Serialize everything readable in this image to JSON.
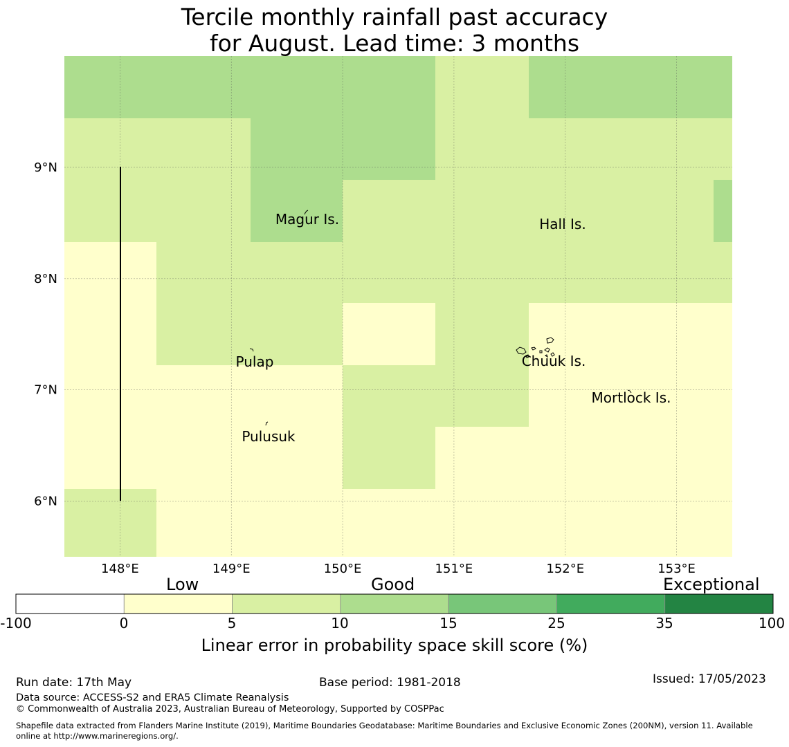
{
  "title": {
    "line1": "Tercile monthly rainfall past accuracy",
    "line2": "for August. Lead time: 3 months"
  },
  "map": {
    "lon_range": [
      147.5,
      153.5
    ],
    "lat_range": [
      5.5,
      10.0
    ],
    "lon_ticks": [
      "148°E",
      "149°E",
      "150°E",
      "151°E",
      "152°E",
      "153°E"
    ],
    "lat_ticks": [
      "6°N",
      "7°N",
      "8°N",
      "9°N"
    ],
    "gridlines": true,
    "places": [
      "Magur Is.",
      "Hall Is.",
      "Pulap",
      "Chuuk Is.",
      "Mortlock Is.",
      "Pulusuk"
    ],
    "grid_lon_edges": [
      147.5,
      148.33,
      149.17,
      150.0,
      150.83,
      151.67,
      152.5,
      153.33,
      153.5
    ],
    "grid_lat_edges": [
      10.0,
      9.44,
      8.89,
      8.33,
      7.78,
      7.22,
      6.67,
      6.11,
      5.5
    ],
    "skill_classes": [
      [
        2,
        2,
        2,
        2,
        1,
        2,
        2,
        2
      ],
      [
        1,
        1,
        2,
        2,
        1,
        1,
        1,
        1
      ],
      [
        1,
        1,
        2,
        1,
        1,
        1,
        1,
        2
      ],
      [
        0,
        1,
        1,
        1,
        1,
        1,
        1,
        1
      ],
      [
        0,
        1,
        1,
        0,
        1,
        0,
        0,
        0
      ],
      [
        0,
        0,
        0,
        1,
        1,
        0,
        0,
        0
      ],
      [
        0,
        0,
        0,
        1,
        0,
        0,
        0,
        0
      ],
      [
        1,
        0,
        0,
        0,
        0,
        0,
        0,
        0
      ]
    ]
  },
  "colorbar": {
    "category_labels": [
      "Low",
      "Good",
      "Exceptional"
    ],
    "ticks": [
      "-100",
      "0",
      "5",
      "10",
      "15",
      "25",
      "35",
      "100"
    ],
    "colors": [
      "#ffffff",
      "#ffffcc",
      "#d9f0a3",
      "#addd8e",
      "#78c679",
      "#41ab5d",
      "#238443"
    ],
    "label": "Linear error in probability space skill score (%)"
  },
  "footer": {
    "run_date": "Run date: 17th May",
    "base_period": "Base period: 1981-2018",
    "issued": "Issued: 17/05/2023",
    "data_source": "Data source: ACCESS-S2 and ERA5 Climate Reanalysis",
    "copyright": "© Commonwealth of Australia 2023, Australian Bureau of Meteorology, Supported by COSPPac",
    "shapefile_line1": "Shapefile data extracted from Flanders Marine Institute (2019), Maritime Boundaries Geodatabase: Maritime Boundaries and Exclusive Economic Zones (200NM), version 11. Available",
    "shapefile_line2": "online at http://www.marineregions.org/."
  }
}
